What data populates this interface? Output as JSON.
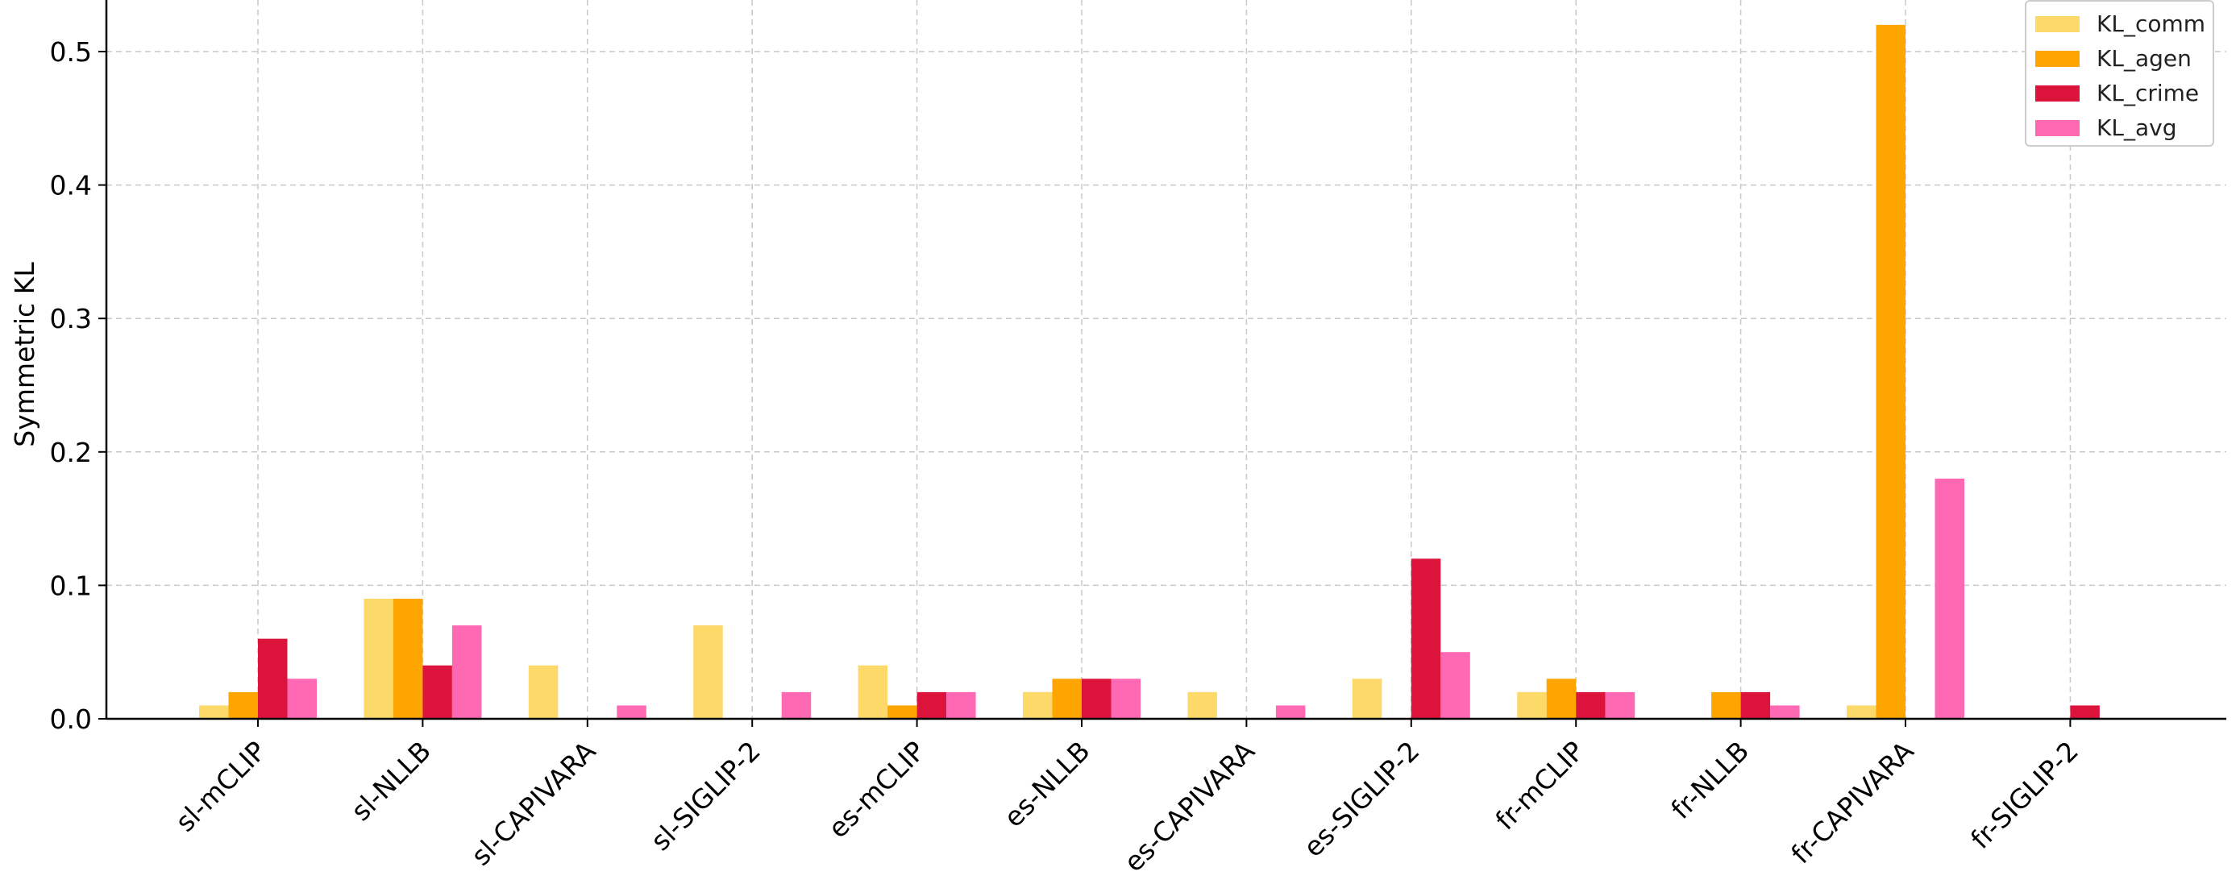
{
  "chart_data": {
    "type": "bar",
    "title": "",
    "xlabel": "",
    "ylabel": "Symmetric KL",
    "ylim": [
      0,
      0.54
    ],
    "yticks": [
      0.0,
      0.1,
      0.2,
      0.3,
      0.4,
      0.5
    ],
    "ytick_labels": [
      "0.0",
      "0.1",
      "0.2",
      "0.3",
      "0.4",
      "0.5"
    ],
    "grid": true,
    "legend_position": "top-right",
    "categories": [
      "sl-mCLIP",
      "sl-NLLB",
      "sl-CAPIVARA",
      "sl-SIGLIP-2",
      "es-mCLIP",
      "es-NLLB",
      "es-CAPIVARA",
      "es-SIGLIP-2",
      "fr-mCLIP",
      "fr-NLLB",
      "fr-CAPIVARA",
      "fr-SIGLIP-2"
    ],
    "series": [
      {
        "name": "KL_comm",
        "color": "#fdd96a",
        "values": [
          0.01,
          0.09,
          0.04,
          0.07,
          0.04,
          0.02,
          0.02,
          0.03,
          0.02,
          0.0,
          0.01,
          0.0
        ]
      },
      {
        "name": "KL_agen",
        "color": "#ffa500",
        "values": [
          0.02,
          0.09,
          0.0,
          0.0,
          0.01,
          0.03,
          0.0,
          0.0,
          0.03,
          0.02,
          0.52,
          0.0
        ]
      },
      {
        "name": "KL_crime",
        "color": "#dc143c",
        "values": [
          0.06,
          0.04,
          0.0,
          0.0,
          0.02,
          0.03,
          0.0,
          0.12,
          0.02,
          0.02,
          0.0,
          0.01
        ]
      },
      {
        "name": "KL_avg",
        "color": "#ff69b4",
        "values": [
          0.03,
          0.07,
          0.01,
          0.02,
          0.02,
          0.03,
          0.01,
          0.05,
          0.02,
          0.01,
          0.18,
          0.0
        ]
      }
    ]
  }
}
